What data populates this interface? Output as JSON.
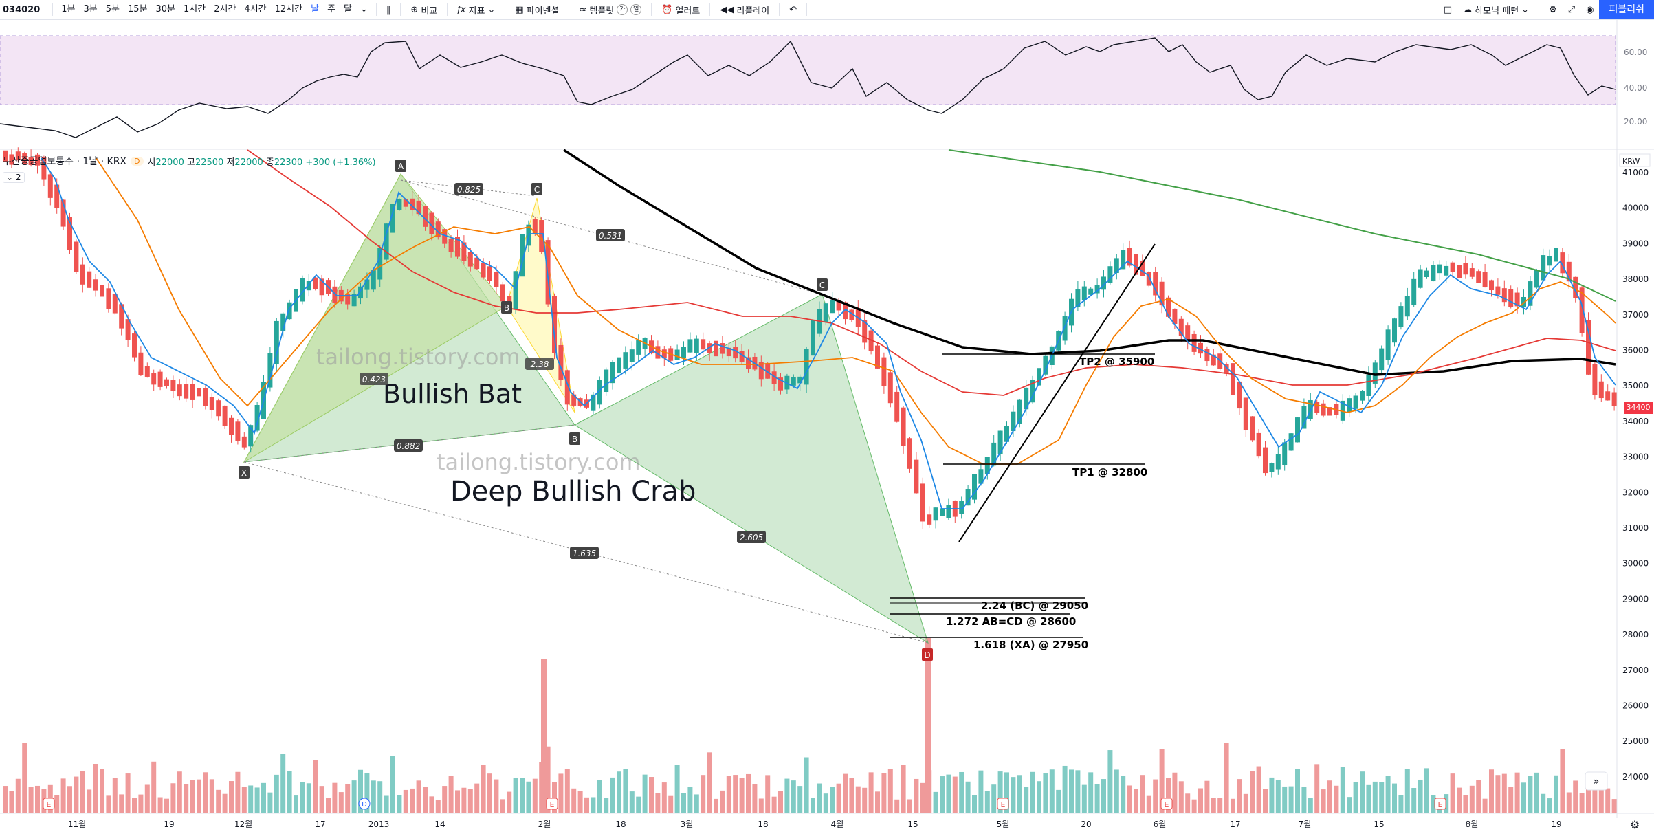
{
  "toolbar": {
    "symbol": "034020",
    "intervals": [
      "1분",
      "3분",
      "5분",
      "15분",
      "30분",
      "1시간",
      "2시간",
      "4시간",
      "12시간",
      "날",
      "주",
      "달"
    ],
    "active_interval": "날",
    "compare_label": "비교",
    "indicators_label": "지표",
    "pine_editor_label": "파이넨셜",
    "templates_label": "템플릿",
    "template_icons": [
      "가",
      "일"
    ],
    "alert_label": "얼러트",
    "replay_label": "리플레이",
    "pattern_label": "하모닉 패턴",
    "publish_label": "퍼블리쉬"
  },
  "legend": {
    "name": "두산중공업보통주 · 1날 · KRX",
    "badge": "D",
    "open_label": "시",
    "open": "22000",
    "high_label": "고",
    "high": "22500",
    "low_label": "저",
    "low": "22000",
    "close_label": "종",
    "close": "22300",
    "change": "+300 (+1.36%)",
    "collapse": "2"
  },
  "currency": "KRW",
  "last_price_tag": "34400",
  "price_axis": [
    "41000",
    "40000",
    "39000",
    "38000",
    "37000",
    "36000",
    "35000",
    "34000",
    "33000",
    "32000",
    "31000",
    "30000",
    "29000",
    "28000",
    "27000",
    "26000",
    "25000",
    "24000"
  ],
  "rsi_axis": [
    "60.00",
    "40.00",
    "20.00"
  ],
  "time_axis": [
    "11월",
    "19",
    "12월",
    "17",
    "2013",
    "14",
    "2월",
    "18",
    "3월",
    "18",
    "4월",
    "15",
    "5월",
    "20",
    "6월",
    "17",
    "7월",
    "15",
    "8월",
    "19"
  ],
  "event_markers": [
    "E",
    "D",
    "E",
    "E",
    "E",
    "E"
  ],
  "annotations": {
    "pattern1": "Bullish Bat",
    "pattern2": "Deep Bullish Crab",
    "watermark": "tailong.tistory.com",
    "points": [
      "A",
      "C",
      "B",
      "X",
      "B",
      "C",
      "D"
    ],
    "ratios": [
      "0.825",
      "0.531",
      "0.423",
      "0.882",
      "2.38",
      "1.635",
      "2.605"
    ],
    "tp2": "TP2 @ 35900",
    "tp1": "TP1 @ 32800",
    "lvl1": "2.24 (BC) @ 29050",
    "lvl2": "1.272 AB=CD @ 28600",
    "lvl3": "1.618 (XA) @ 27950"
  },
  "colors": {
    "up": "#26a69a",
    "down": "#ef5350",
    "rsi_band": "#e1bee7",
    "ma_blue": "#2962ff",
    "ma_orange": "#f57c00",
    "ma_red": "#e53935",
    "ma_black": "#000000",
    "ma_green": "#43a047",
    "accent": "#2962ff"
  }
}
